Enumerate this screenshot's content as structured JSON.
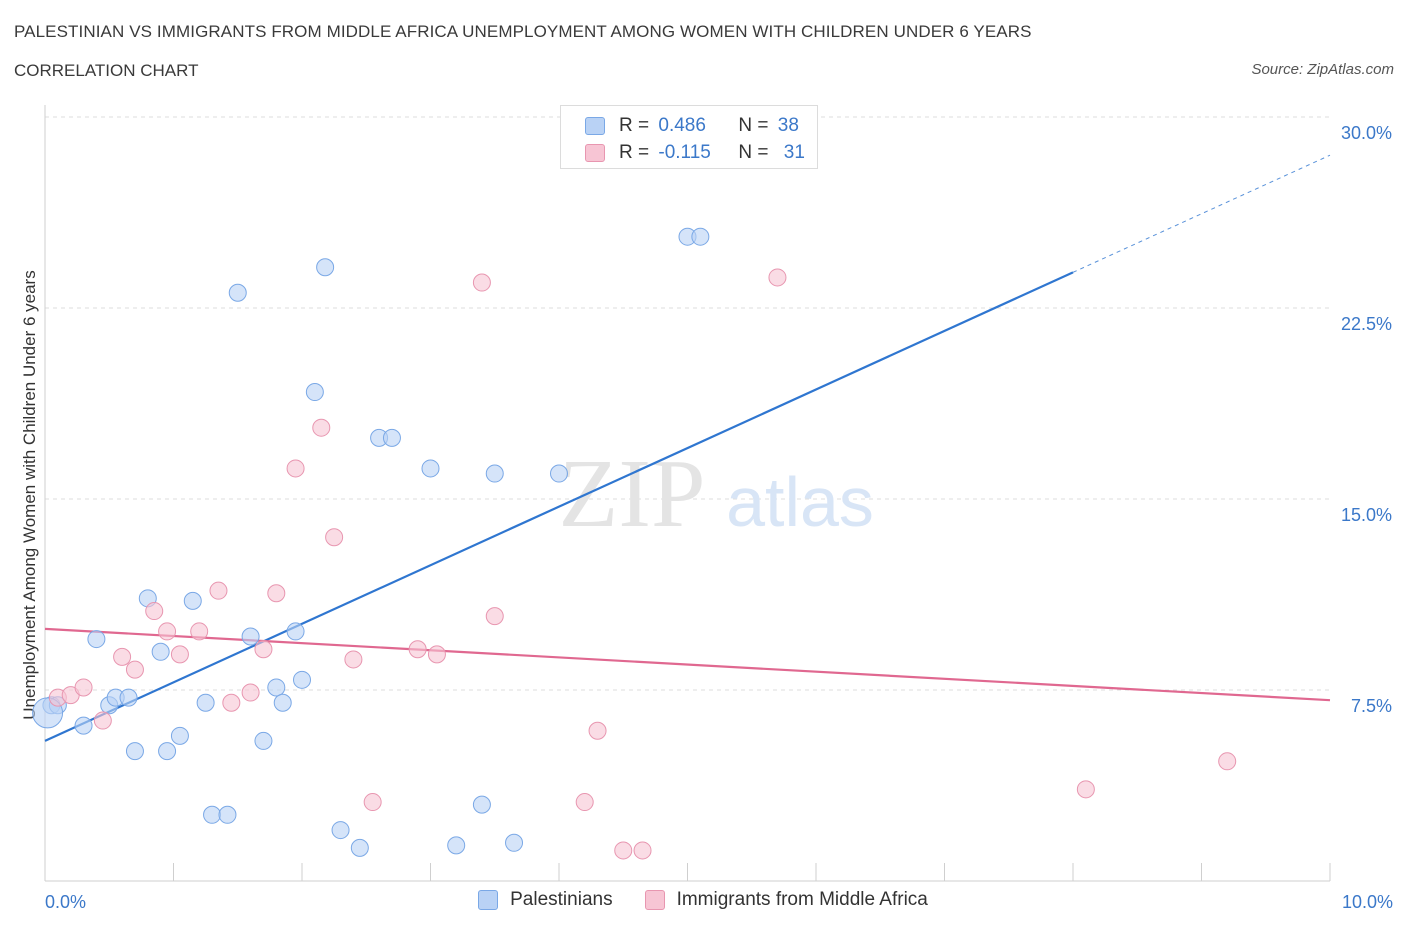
{
  "title": "PALESTINIAN VS IMMIGRANTS FROM MIDDLE AFRICA UNEMPLOYMENT AMONG WOMEN WITH CHILDREN UNDER 6 YEARS",
  "subtitle": "CORRELATION CHART",
  "source": "Source: ZipAtlas.com",
  "watermark": {
    "zip": "ZIP",
    "atlas": "atlas"
  },
  "legend_top": {
    "rows": [
      {
        "r_label": "R = ",
        "r_value": "0.486",
        "n_label": "N = ",
        "n_value": "38",
        "color": "#b9d2f5"
      },
      {
        "r_label": "R = ",
        "r_value": "-0.115",
        "n_label": "N = ",
        "n_value": "31",
        "color": "#f7c5d4"
      }
    ]
  },
  "chart_data": {
    "type": "scatter",
    "title": "PALESTINIAN VS IMMIGRANTS FROM MIDDLE AFRICA UNEMPLOYMENT AMONG WOMEN WITH CHILDREN UNDER 6 YEARS",
    "subtitle": "CORRELATION CHART",
    "xlabel": "",
    "ylabel": "Unemployment Among Women with Children Under 6 years",
    "xlim": [
      0,
      10
    ],
    "ylim": [
      0,
      30
    ],
    "x_tick_labels": [
      {
        "value": 0,
        "label": "0.0%"
      },
      {
        "value": 10,
        "label": "10.0%"
      }
    ],
    "y_tick_labels": [
      {
        "value": 7.5,
        "label": "7.5%"
      },
      {
        "value": 15,
        "label": "15.0%"
      },
      {
        "value": 22.5,
        "label": "22.5%"
      },
      {
        "value": 30,
        "label": "30.0%"
      }
    ],
    "grid": true,
    "legend_position": "bottom",
    "series": [
      {
        "name": "Palestinians",
        "color": "#7aa8e6",
        "fill": "#b9d2f5",
        "trend": {
          "x0": 0,
          "y0": 5.5,
          "x1": 8.0,
          "y1": 23.9,
          "dash_to_x": 10.0,
          "dash_to_y": 28.5,
          "color": "#2f76d0"
        },
        "points": [
          {
            "x": 0.05,
            "y": 6.9
          },
          {
            "x": 0.1,
            "y": 6.9
          },
          {
            "x": 0.3,
            "y": 6.1
          },
          {
            "x": 0.4,
            "y": 9.5
          },
          {
            "x": 0.5,
            "y": 6.9
          },
          {
            "x": 0.55,
            "y": 7.2
          },
          {
            "x": 0.65,
            "y": 7.2
          },
          {
            "x": 0.7,
            "y": 5.1
          },
          {
            "x": 0.8,
            "y": 11.1
          },
          {
            "x": 0.9,
            "y": 9.0
          },
          {
            "x": 0.95,
            "y": 5.1
          },
          {
            "x": 1.05,
            "y": 5.7
          },
          {
            "x": 1.15,
            "y": 11.0
          },
          {
            "x": 1.25,
            "y": 7.0
          },
          {
            "x": 1.3,
            "y": 2.6
          },
          {
            "x": 1.42,
            "y": 2.6
          },
          {
            "x": 1.5,
            "y": 23.1
          },
          {
            "x": 1.6,
            "y": 9.6
          },
          {
            "x": 1.7,
            "y": 5.5
          },
          {
            "x": 1.8,
            "y": 7.6
          },
          {
            "x": 1.85,
            "y": 7.0
          },
          {
            "x": 1.95,
            "y": 9.8
          },
          {
            "x": 2.0,
            "y": 7.9
          },
          {
            "x": 2.1,
            "y": 19.2
          },
          {
            "x": 2.18,
            "y": 24.1
          },
          {
            "x": 2.3,
            "y": 2.0
          },
          {
            "x": 2.45,
            "y": 1.3
          },
          {
            "x": 2.6,
            "y": 17.4
          },
          {
            "x": 2.7,
            "y": 17.4
          },
          {
            "x": 3.0,
            "y": 16.2
          },
          {
            "x": 3.2,
            "y": 1.4
          },
          {
            "x": 3.4,
            "y": 3.0
          },
          {
            "x": 3.5,
            "y": 16.0
          },
          {
            "x": 3.65,
            "y": 1.5
          },
          {
            "x": 4.0,
            "y": 16.0
          },
          {
            "x": 5.0,
            "y": 25.3
          },
          {
            "x": 5.1,
            "y": 25.3
          },
          {
            "x": 0.02,
            "y": 6.6
          }
        ]
      },
      {
        "name": "Immigrants from Middle Africa",
        "color": "#e896b0",
        "fill": "#f7c5d4",
        "trend": {
          "x0": 0,
          "y0": 9.9,
          "x1": 10.0,
          "y1": 7.1,
          "color": "#e06890"
        },
        "points": [
          {
            "x": 0.1,
            "y": 7.2
          },
          {
            "x": 0.2,
            "y": 7.3
          },
          {
            "x": 0.3,
            "y": 7.6
          },
          {
            "x": 0.45,
            "y": 6.3
          },
          {
            "x": 0.6,
            "y": 8.8
          },
          {
            "x": 0.7,
            "y": 8.3
          },
          {
            "x": 0.85,
            "y": 10.6
          },
          {
            "x": 0.95,
            "y": 9.8
          },
          {
            "x": 1.05,
            "y": 8.9
          },
          {
            "x": 1.2,
            "y": 9.8
          },
          {
            "x": 1.35,
            "y": 11.4
          },
          {
            "x": 1.45,
            "y": 7.0
          },
          {
            "x": 1.6,
            "y": 7.4
          },
          {
            "x": 1.7,
            "y": 9.1
          },
          {
            "x": 1.8,
            "y": 11.3
          },
          {
            "x": 1.95,
            "y": 16.2
          },
          {
            "x": 2.15,
            "y": 17.8
          },
          {
            "x": 2.25,
            "y": 13.5
          },
          {
            "x": 2.4,
            "y": 8.7
          },
          {
            "x": 2.55,
            "y": 3.1
          },
          {
            "x": 2.9,
            "y": 9.1
          },
          {
            "x": 3.05,
            "y": 8.9
          },
          {
            "x": 3.4,
            "y": 23.5
          },
          {
            "x": 3.5,
            "y": 10.4
          },
          {
            "x": 4.2,
            "y": 3.1
          },
          {
            "x": 4.3,
            "y": 5.9
          },
          {
            "x": 4.5,
            "y": 1.2
          },
          {
            "x": 4.65,
            "y": 1.2
          },
          {
            "x": 5.7,
            "y": 23.7
          },
          {
            "x": 8.1,
            "y": 3.6
          },
          {
            "x": 9.2,
            "y": 4.7
          }
        ]
      }
    ]
  }
}
